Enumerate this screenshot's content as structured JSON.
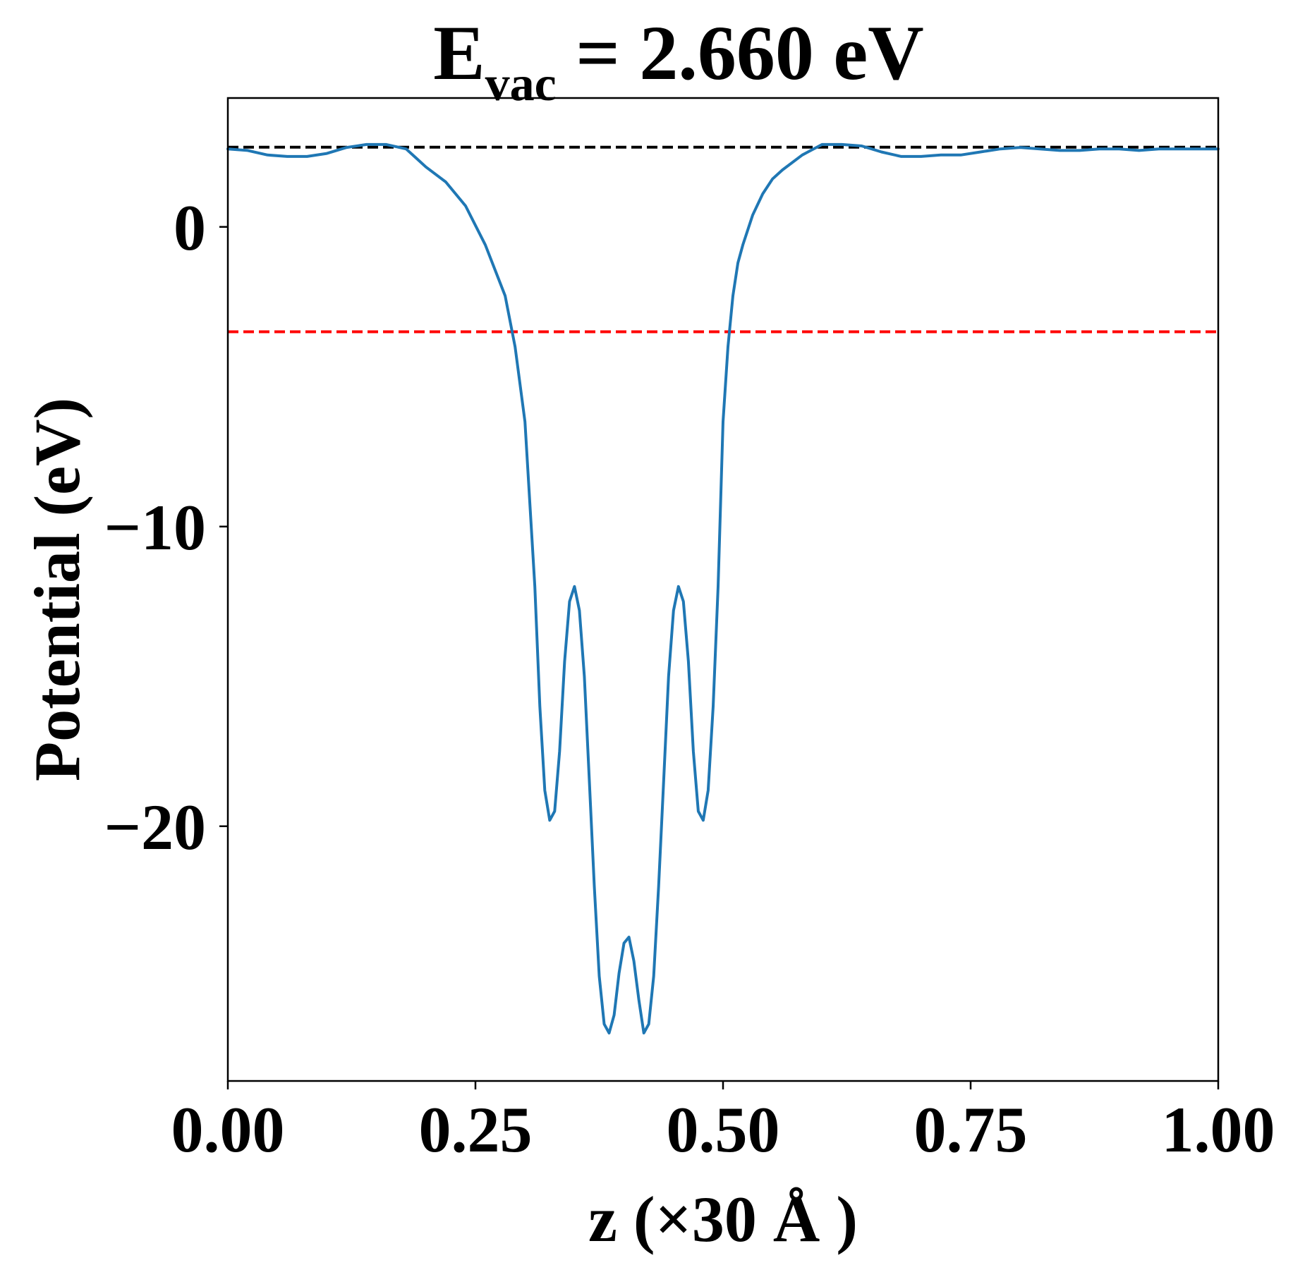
{
  "chart_data": {
    "type": "line",
    "title": {
      "main": "E",
      "subscript": "vac",
      "rest": " = 2.660 eV"
    },
    "xlabel": "z (×30 Å )",
    "ylabel": "Potential (eV)",
    "xlim": [
      0.0,
      1.0
    ],
    "ylim": [
      -28.5,
      4.3
    ],
    "xticks": [
      {
        "value": 0.0,
        "label": "0.00"
      },
      {
        "value": 0.25,
        "label": "0.25"
      },
      {
        "value": 0.5,
        "label": "0.50"
      },
      {
        "value": 0.75,
        "label": "0.75"
      },
      {
        "value": 1.0,
        "label": "1.00"
      }
    ],
    "yticks": [
      {
        "value": 0,
        "label": "0"
      },
      {
        "value": -10,
        "label": "−10"
      },
      {
        "value": -20,
        "label": "−20"
      }
    ],
    "grid": false,
    "reference_lines": [
      {
        "y": 2.66,
        "color": "#000000",
        "style": "dashed"
      },
      {
        "y": -3.5,
        "color": "#ff0000",
        "style": "dashed"
      }
    ],
    "series": [
      {
        "color": "#1f77b4",
        "x": [
          0.0,
          0.02,
          0.04,
          0.06,
          0.08,
          0.1,
          0.12,
          0.14,
          0.16,
          0.18,
          0.19,
          0.2,
          0.22,
          0.24,
          0.26,
          0.28,
          0.29,
          0.3,
          0.31,
          0.315,
          0.32,
          0.325,
          0.33,
          0.335,
          0.34,
          0.345,
          0.35,
          0.355,
          0.36,
          0.365,
          0.37,
          0.375,
          0.38,
          0.385,
          0.39,
          0.395,
          0.4,
          0.405,
          0.41,
          0.415,
          0.42,
          0.425,
          0.43,
          0.435,
          0.44,
          0.445,
          0.45,
          0.455,
          0.46,
          0.465,
          0.47,
          0.475,
          0.48,
          0.485,
          0.49,
          0.495,
          0.5,
          0.505,
          0.51,
          0.515,
          0.52,
          0.53,
          0.54,
          0.55,
          0.56,
          0.58,
          0.6,
          0.62,
          0.64,
          0.65,
          0.66,
          0.68,
          0.7,
          0.72,
          0.74,
          0.76,
          0.78,
          0.8,
          0.82,
          0.84,
          0.86,
          0.88,
          0.9,
          0.92,
          0.94,
          0.96,
          0.98,
          1.0
        ],
        "y": [
          2.6,
          2.55,
          2.4,
          2.35,
          2.35,
          2.45,
          2.65,
          2.75,
          2.75,
          2.6,
          2.3,
          2.0,
          1.5,
          0.7,
          -0.6,
          -2.3,
          -4.0,
          -6.5,
          -12.0,
          -16.0,
          -18.8,
          -19.8,
          -19.5,
          -17.5,
          -14.5,
          -12.5,
          -12.0,
          -12.8,
          -15.0,
          -18.5,
          -22.0,
          -25.0,
          -26.6,
          -26.9,
          -26.3,
          -24.9,
          -23.9,
          -23.7,
          -24.5,
          -25.8,
          -26.9,
          -26.6,
          -25.0,
          -22.0,
          -18.5,
          -15.0,
          -12.8,
          -12.0,
          -12.5,
          -14.5,
          -17.5,
          -19.5,
          -19.8,
          -18.8,
          -16.0,
          -12.0,
          -6.5,
          -4.0,
          -2.3,
          -1.2,
          -0.6,
          0.4,
          1.1,
          1.6,
          1.9,
          2.4,
          2.75,
          2.75,
          2.7,
          2.6,
          2.5,
          2.35,
          2.35,
          2.4,
          2.4,
          2.5,
          2.6,
          2.65,
          2.6,
          2.55,
          2.55,
          2.6,
          2.6,
          2.55,
          2.6,
          2.6,
          2.6,
          2.6
        ]
      }
    ]
  }
}
